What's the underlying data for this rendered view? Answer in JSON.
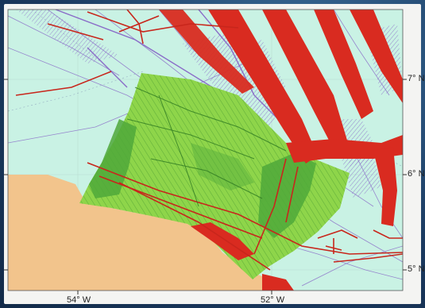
{
  "axes": {
    "x_ticks": [
      {
        "label": "54° W",
        "value": -54
      },
      {
        "label": "52° W",
        "value": -52
      }
    ],
    "y_ticks": [
      {
        "label": "7° N",
        "value": 7
      },
      {
        "label": "6° N",
        "value": 6
      },
      {
        "label": "5° N",
        "value": 5
      }
    ]
  },
  "colors": {
    "ocean": "#c9f2e4",
    "land": "#f2c48c",
    "survey_area_light": "#8ed54a",
    "survey_area_dark": "#4fa93a",
    "shipping_lanes": "#d92b20",
    "vessel_tracks": "#8a6cc8"
  }
}
